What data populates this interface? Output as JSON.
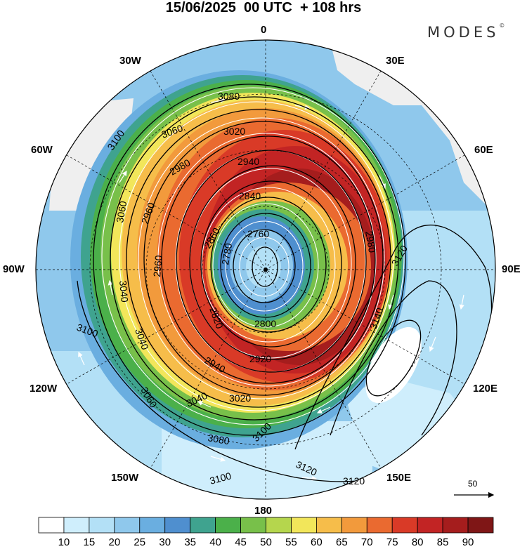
{
  "header": {
    "title": "15/06/2025  00 UTC  + 108 hrs",
    "brand": "MODES",
    "brand_mark": "©"
  },
  "map": {
    "projection": "south-polar-stereographic",
    "longitude_labels": {
      "top": "0",
      "top_right": "30E",
      "upper_right": "60E",
      "right": "90E",
      "lower_right": "120E",
      "bottom_right": "150E",
      "bottom": "180",
      "bottom_left": "150W",
      "lower_left": "120W",
      "left": "90W",
      "upper_left": "60W",
      "top_left": "30W"
    },
    "contour_labels": [
      "3080",
      "3100",
      "3060",
      "3020",
      "2980",
      "2940",
      "2840",
      "2960",
      "3060",
      "2760",
      "2780",
      "2860",
      "2960",
      "3040",
      "3040",
      "2800",
      "2820",
      "2940",
      "2920",
      "3040",
      "3020",
      "3080",
      "3100",
      "3100",
      "3100",
      "3120",
      "3140",
      "3120",
      "3120",
      "3060",
      "2980"
    ],
    "vector_reference": "50",
    "colors": {
      "core": "#8b1b1b",
      "jet": "#d62e24",
      "land": "#efefef"
    }
  },
  "colorbar": {
    "labels": [
      "10",
      "15",
      "20",
      "25",
      "30",
      "35",
      "40",
      "45",
      "50",
      "55",
      "60",
      "65",
      "70",
      "75",
      "80",
      "85",
      "90"
    ],
    "colors": [
      "#ffffff",
      "#cfeefc",
      "#b3e0f6",
      "#8fc8ec",
      "#6aaee0",
      "#4f8fcf",
      "#3fa38f",
      "#4bb04a",
      "#78c04a",
      "#b5d64d",
      "#f2e65a",
      "#f6bd4a",
      "#f29a3c",
      "#ea6a30",
      "#d93a27",
      "#c22424",
      "#a51d1d",
      "#7f1616"
    ]
  }
}
